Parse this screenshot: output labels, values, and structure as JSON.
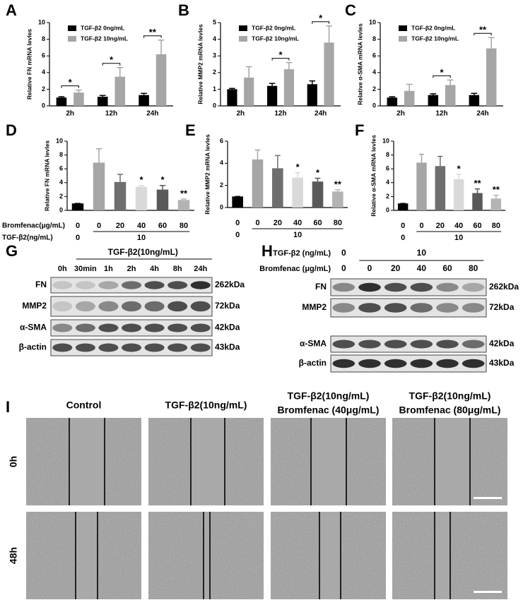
{
  "chart_data": [
    {
      "panel_label": "A",
      "type": "grouped_bar",
      "y_label": "Relative FN mRNA levles",
      "categories": [
        "2h",
        "12h",
        "24h"
      ],
      "series": [
        {
          "name": "TGF-β2 0ng/mL",
          "color": "#000000",
          "values": [
            1,
            1.1,
            1.3
          ],
          "errors": [
            0.1,
            0.15,
            0.2
          ]
        },
        {
          "name": "TGF-β2 10ng/mL",
          "color": "#a6a6a6",
          "values": [
            1.6,
            3.5,
            6.2
          ],
          "errors": [
            0.3,
            1.1,
            1.7
          ]
        }
      ],
      "significance": [
        "*",
        "*",
        "**"
      ],
      "ylim": [
        0,
        10
      ],
      "yticks": [
        0,
        2,
        4,
        6,
        8,
        10
      ],
      "legend": "upper left"
    },
    {
      "panel_label": "B",
      "type": "grouped_bar",
      "y_label": "Relative MMP2 mRNA levles",
      "categories": [
        "2h",
        "12h",
        "24h"
      ],
      "series": [
        {
          "name": "TGF-β2 0ng/mL",
          "color": "#000000",
          "values": [
            1,
            1.2,
            1.3
          ],
          "errors": [
            0.05,
            0.15,
            0.2
          ]
        },
        {
          "name": "TGF-β2 10ng/mL",
          "color": "#a6a6a6",
          "values": [
            1.7,
            2.2,
            3.8
          ],
          "errors": [
            0.65,
            0.4,
            1.0
          ]
        }
      ],
      "significance": [
        null,
        "*",
        "*"
      ],
      "ylim": [
        0,
        5
      ],
      "yticks": [
        0,
        1,
        2,
        3,
        4,
        5
      ],
      "legend": "upper left"
    },
    {
      "panel_label": "C",
      "type": "grouped_bar",
      "y_label": "Relative α-SMA mRNA levles",
      "categories": [
        "2h",
        "12h",
        "24h"
      ],
      "series": [
        {
          "name": "TGF-β2 0ng/mL",
          "color": "#000000",
          "values": [
            1,
            1.3,
            1.3
          ],
          "errors": [
            0.1,
            0.15,
            0.2
          ]
        },
        {
          "name": "TGF-β2 10ng/mL",
          "color": "#a6a6a6",
          "values": [
            1.8,
            2.5,
            6.9
          ],
          "errors": [
            0.8,
            0.6,
            1.3
          ]
        }
      ],
      "significance": [
        null,
        "*",
        "**"
      ],
      "ylim": [
        0,
        10
      ],
      "yticks": [
        0,
        2,
        4,
        6,
        8,
        10
      ],
      "legend": "upper left"
    },
    {
      "panel_label": "D",
      "type": "bar",
      "y_label": "Relative FN mRNA levles",
      "row_labels": [
        "Bromfenac(μg/mL)",
        "TGF-β2(ng/mL)"
      ],
      "categories": [
        "0",
        "0",
        "20",
        "40",
        "60",
        "80"
      ],
      "groups": [
        "0",
        "10"
      ],
      "values": [
        1,
        6.9,
        4.1,
        3.4,
        3.0,
        1.5
      ],
      "errors": [
        0,
        2.0,
        1.1,
        0.2,
        0.6,
        0.15
      ],
      "colors": [
        "#000000",
        "#a6a6a6",
        "#6e6e6e",
        "#d9d9d9",
        "#595959",
        "#b3b3b3"
      ],
      "significance": [
        null,
        null,
        null,
        "*",
        "*",
        "**"
      ],
      "ylim": [
        0,
        10
      ],
      "yticks": [
        0,
        2,
        4,
        6,
        8,
        10
      ]
    },
    {
      "panel_label": "E",
      "type": "bar",
      "y_label": "Relative MMP2 mRNA levles",
      "categories": [
        "0",
        "0",
        "20",
        "40",
        "60",
        "80"
      ],
      "groups": [
        "0",
        "10"
      ],
      "values": [
        1,
        4.35,
        3.55,
        2.7,
        2.35,
        1.45
      ],
      "errors": [
        0,
        0.85,
        1.15,
        0.45,
        0.3,
        0.15
      ],
      "colors": [
        "#000000",
        "#a6a6a6",
        "#6e6e6e",
        "#d9d9d9",
        "#595959",
        "#b3b3b3"
      ],
      "significance": [
        null,
        null,
        null,
        "*",
        "*",
        "**"
      ],
      "ylim": [
        0,
        6
      ],
      "yticks": [
        0,
        2,
        4,
        6
      ]
    },
    {
      "panel_label": "F",
      "type": "bar",
      "y_label": "Relative α-SMA mRNA levles",
      "categories": [
        "0",
        "0",
        "20",
        "40",
        "60",
        "80"
      ],
      "groups": [
        "0",
        "10"
      ],
      "values": [
        1,
        6.9,
        6.4,
        4.5,
        2.5,
        1.7
      ],
      "errors": [
        0,
        1.2,
        1.4,
        0.7,
        0.6,
        0.5
      ],
      "colors": [
        "#000000",
        "#a6a6a6",
        "#6e6e6e",
        "#d9d9d9",
        "#595959",
        "#b3b3b3"
      ],
      "significance": [
        null,
        null,
        null,
        "*",
        "**",
        "**"
      ],
      "ylim": [
        0,
        10
      ],
      "yticks": [
        0,
        2,
        4,
        6,
        8,
        10
      ]
    }
  ],
  "blots": [
    {
      "panel_label": "G",
      "header": "TGF-β2(10ng/mL)",
      "lanes": [
        "0h",
        "30min",
        "1h",
        "2h",
        "4h",
        "8h",
        "24h"
      ],
      "rows": [
        "FN",
        "MMP2",
        "α-SMA",
        "β-actin"
      ],
      "sizes": [
        "262kDa",
        "72kDa",
        "42kDa",
        "43kDa"
      ]
    },
    {
      "panel_label": "H",
      "condition_rows": [
        {
          "label": "TGF-β2 (ng/mL)",
          "values": [
            "0",
            "10"
          ]
        },
        {
          "label": "Bromfenac (μg/mL)",
          "values": [
            "0",
            "0",
            "20",
            "40",
            "60",
            "80"
          ]
        }
      ],
      "rows": [
        "FN",
        "MMP2",
        "α-SMA",
        "β-actin"
      ],
      "sizes": [
        "262kDa",
        "72kDa",
        "42kDa",
        "43kDa"
      ]
    }
  ],
  "migration": {
    "panel_label": "I",
    "columns": [
      [
        "Control"
      ],
      [
        "TGF-β2(10ng/mL)"
      ],
      [
        "TGF-β2(10ng/mL)",
        "Bromfenac (40μg/mL)"
      ],
      [
        "TGF-β2(10ng/mL)",
        "Bromfenac (80μg/mL)"
      ]
    ],
    "rows": [
      "0h",
      "48h"
    ]
  }
}
